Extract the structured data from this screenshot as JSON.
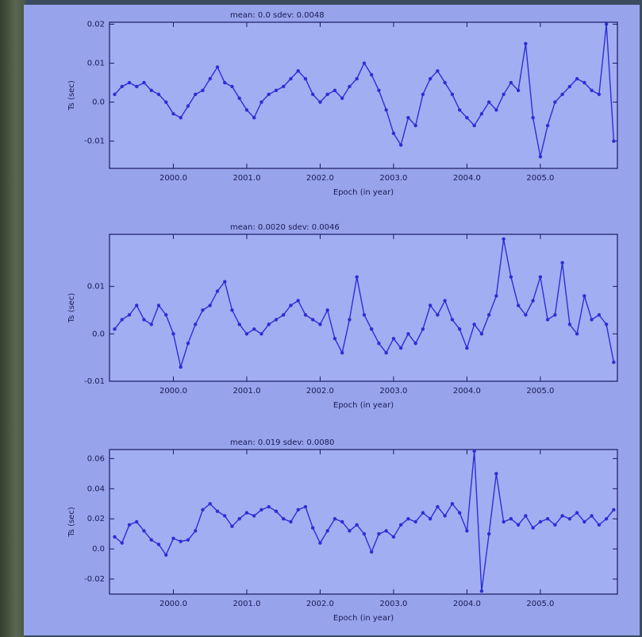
{
  "chart_data": [
    {
      "type": "line",
      "title": "mean: 0.0    sdev: 0.0048",
      "xlabel": "Epoch (in year)",
      "ylabel": "Ts (sec)",
      "x": [
        1999.2,
        1999.3,
        1999.4,
        1999.5,
        1999.6,
        1999.7,
        1999.8,
        1999.9,
        2000.0,
        2000.1,
        2000.2,
        2000.3,
        2000.4,
        2000.5,
        2000.6,
        2000.7,
        2000.8,
        2000.9,
        2001.0,
        2001.1,
        2001.2,
        2001.3,
        2001.4,
        2001.5,
        2001.6,
        2001.7,
        2001.8,
        2001.9,
        2002.0,
        2002.1,
        2002.2,
        2002.3,
        2002.4,
        2002.5,
        2002.6,
        2002.7,
        2002.8,
        2002.9,
        2003.0,
        2003.1,
        2003.2,
        2003.3,
        2003.4,
        2003.5,
        2003.6,
        2003.7,
        2003.8,
        2003.9,
        2004.0,
        2004.1,
        2004.2,
        2004.3,
        2004.4,
        2004.5,
        2004.6,
        2004.7,
        2004.8,
        2004.9,
        2005.0,
        2005.1,
        2005.2,
        2005.3,
        2005.4,
        2005.5,
        2005.6,
        2005.7,
        2005.8,
        2005.9,
        2006.0
      ],
      "values": [
        0.002,
        0.004,
        0.005,
        0.004,
        0.005,
        0.003,
        0.002,
        0.0,
        -0.003,
        -0.004,
        -0.001,
        0.002,
        0.003,
        0.006,
        0.009,
        0.005,
        0.004,
        0.001,
        -0.002,
        -0.004,
        0.0,
        0.002,
        0.003,
        0.004,
        0.006,
        0.008,
        0.006,
        0.002,
        0.0,
        0.002,
        0.003,
        0.001,
        0.004,
        0.006,
        0.01,
        0.007,
        0.003,
        -0.002,
        -0.008,
        -0.011,
        -0.004,
        -0.006,
        0.002,
        0.006,
        0.008,
        0.005,
        0.002,
        -0.002,
        -0.004,
        -0.006,
        -0.003,
        0.0,
        -0.002,
        0.002,
        0.005,
        0.003,
        0.015,
        -0.004,
        -0.014,
        -0.006,
        0.0,
        0.002,
        0.004,
        0.006,
        0.005,
        0.003,
        0.002,
        0.02,
        -0.01
      ],
      "color": "#2b2fd6",
      "xlim": [
        1999.13,
        2006.05
      ],
      "xticks": [
        {
          "value": 2000,
          "label": "2000.0"
        },
        {
          "value": 2001,
          "label": "2001.0"
        },
        {
          "value": 2002,
          "label": "2002.0"
        },
        {
          "value": 2003,
          "label": "2003.0"
        },
        {
          "value": 2004,
          "label": "2004.0"
        },
        {
          "value": 2005,
          "label": "2005.0"
        }
      ],
      "ylim": [
        -0.017,
        0.0205
      ],
      "yticks": [
        0.02,
        0.01,
        {
          "value": 0,
          "label": "0.0"
        },
        -0.01
      ]
    },
    {
      "type": "line",
      "title": "mean: 0.0020    sdev: 0.0046",
      "xlabel": "Epoch (in year)",
      "ylabel": "Ts (sec)",
      "x": [
        1999.2,
        1999.3,
        1999.4,
        1999.5,
        1999.6,
        1999.7,
        1999.8,
        1999.9,
        2000.0,
        2000.1,
        2000.2,
        2000.3,
        2000.4,
        2000.5,
        2000.6,
        2000.7,
        2000.8,
        2000.9,
        2001.0,
        2001.1,
        2001.2,
        2001.3,
        2001.4,
        2001.5,
        2001.6,
        2001.7,
        2001.8,
        2001.9,
        2002.0,
        2002.1,
        2002.2,
        2002.3,
        2002.4,
        2002.5,
        2002.6,
        2002.7,
        2002.8,
        2002.9,
        2003.0,
        2003.1,
        2003.2,
        2003.3,
        2003.4,
        2003.5,
        2003.6,
        2003.7,
        2003.8,
        2003.9,
        2004.0,
        2004.1,
        2004.2,
        2004.3,
        2004.4,
        2004.5,
        2004.6,
        2004.7,
        2004.8,
        2004.9,
        2005.0,
        2005.1,
        2005.2,
        2005.3,
        2005.4,
        2005.5,
        2005.6,
        2005.7,
        2005.8,
        2005.9,
        2006.0
      ],
      "values": [
        0.001,
        0.003,
        0.004,
        0.006,
        0.003,
        0.002,
        0.006,
        0.004,
        0.0,
        -0.007,
        -0.002,
        0.002,
        0.005,
        0.006,
        0.009,
        0.011,
        0.005,
        0.002,
        0.0,
        0.001,
        0.0,
        0.002,
        0.003,
        0.004,
        0.006,
        0.007,
        0.004,
        0.003,
        0.002,
        0.005,
        -0.001,
        -0.004,
        0.003,
        0.012,
        0.004,
        0.001,
        -0.002,
        -0.004,
        -0.001,
        -0.003,
        0.0,
        -0.002,
        0.001,
        0.006,
        0.004,
        0.007,
        0.003,
        0.001,
        -0.003,
        0.002,
        0.0,
        0.004,
        0.008,
        0.02,
        0.012,
        0.006,
        0.004,
        0.007,
        0.012,
        0.003,
        0.004,
        0.015,
        0.002,
        0.0,
        0.008,
        0.003,
        0.004,
        0.002,
        -0.006
      ],
      "color": "#2b2fd6",
      "xlim": [
        1999.13,
        2006.05
      ],
      "xticks": [
        {
          "value": 2000,
          "label": "2000.0"
        },
        {
          "value": 2001,
          "label": "2001.0"
        },
        {
          "value": 2002,
          "label": "2002.0"
        },
        {
          "value": 2003,
          "label": "2003.0"
        },
        {
          "value": 2004,
          "label": "2004.0"
        },
        {
          "value": 2005,
          "label": "2005.0"
        }
      ],
      "ylim": [
        -0.01,
        0.021
      ],
      "yticks": [
        0.01,
        {
          "value": 0,
          "label": "0.0"
        },
        -0.01
      ]
    },
    {
      "type": "line",
      "title": "mean: 0.019    sdev: 0.0080",
      "xlabel": "Epoch (in year)",
      "ylabel": "Ts (sec)",
      "x": [
        1999.2,
        1999.3,
        1999.4,
        1999.5,
        1999.6,
        1999.7,
        1999.8,
        1999.9,
        2000.0,
        2000.1,
        2000.2,
        2000.3,
        2000.4,
        2000.5,
        2000.6,
        2000.7,
        2000.8,
        2000.9,
        2001.0,
        2001.1,
        2001.2,
        2001.3,
        2001.4,
        2001.5,
        2001.6,
        2001.7,
        2001.8,
        2001.9,
        2002.0,
        2002.1,
        2002.2,
        2002.3,
        2002.4,
        2002.5,
        2002.6,
        2002.7,
        2002.8,
        2002.9,
        2003.0,
        2003.1,
        2003.2,
        2003.3,
        2003.4,
        2003.5,
        2003.6,
        2003.7,
        2003.8,
        2003.9,
        2004.0,
        2004.1,
        2004.2,
        2004.3,
        2004.4,
        2004.5,
        2004.6,
        2004.7,
        2004.8,
        2004.9,
        2005.0,
        2005.1,
        2005.2,
        2005.3,
        2005.4,
        2005.5,
        2005.6,
        2005.7,
        2005.8,
        2005.9,
        2006.0
      ],
      "values": [
        0.008,
        0.004,
        0.016,
        0.018,
        0.012,
        0.006,
        0.003,
        -0.004,
        0.007,
        0.005,
        0.006,
        0.012,
        0.026,
        0.03,
        0.025,
        0.022,
        0.015,
        0.02,
        0.024,
        0.022,
        0.026,
        0.028,
        0.025,
        0.02,
        0.018,
        0.026,
        0.028,
        0.014,
        0.004,
        0.012,
        0.02,
        0.018,
        0.012,
        0.016,
        0.01,
        -0.002,
        0.01,
        0.012,
        0.008,
        0.016,
        0.02,
        0.018,
        0.024,
        0.02,
        0.028,
        0.022,
        0.03,
        0.024,
        0.012,
        0.065,
        -0.028,
        0.01,
        0.05,
        0.018,
        0.02,
        0.016,
        0.022,
        0.014,
        0.018,
        0.02,
        0.016,
        0.022,
        0.02,
        0.024,
        0.018,
        0.022,
        0.016,
        0.02,
        0.026
      ],
      "color": "#2b2fd6",
      "xlim": [
        1999.13,
        2006.05
      ],
      "xticks": [
        {
          "value": 2000,
          "label": "2000.0"
        },
        {
          "value": 2001,
          "label": "2001.0"
        },
        {
          "value": 2002,
          "label": "2002.0"
        },
        {
          "value": 2003,
          "label": "2003.0"
        },
        {
          "value": 2004,
          "label": "2004.0"
        },
        {
          "value": 2005,
          "label": "2005.0"
        }
      ],
      "ylim": [
        -0.03,
        0.066
      ],
      "yticks": [
        0.06,
        0.04,
        0.02,
        {
          "value": 0,
          "label": "0.0"
        },
        -0.02
      ]
    }
  ]
}
